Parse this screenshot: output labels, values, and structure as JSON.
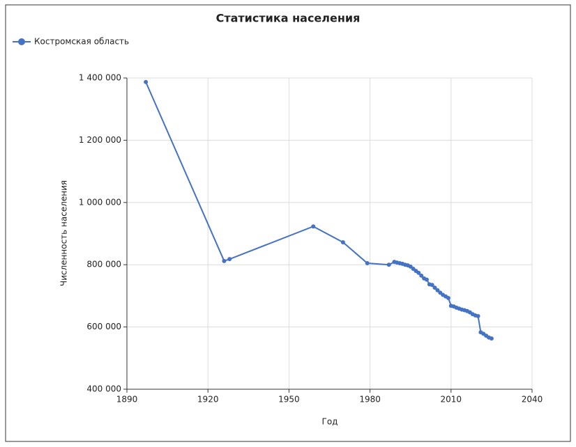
{
  "chart_data": {
    "type": "line",
    "title": "Статистика населения",
    "x_label": "Год",
    "y_label": "Численность населения",
    "grid": true,
    "legend_position": "top-left",
    "x": [
      1897,
      1926,
      1928,
      1959,
      1970,
      1979,
      1987,
      1989,
      1990,
      1991,
      1992,
      1993,
      1994,
      1995,
      1996,
      1997,
      1998,
      1999,
      2000,
      2001,
      2002,
      2003,
      2004,
      2005,
      2006,
      2007,
      2008,
      2009,
      2010,
      2011,
      2012,
      2013,
      2014,
      2015,
      2016,
      2017,
      2018,
      2019,
      2020,
      2021,
      2022,
      2023,
      2024,
      2025
    ],
    "series": [
      {
        "name": "Костромская область",
        "color": "#4472c4",
        "values": [
          1387000,
          812000,
          818000,
          923000,
          872000,
          805000,
          800000,
          809000,
          807000,
          805000,
          803000,
          800000,
          798000,
          794000,
          787000,
          780000,
          774000,
          765000,
          756000,
          752000,
          737000,
          735000,
          726000,
          718000,
          710000,
          703000,
          698000,
          693000,
          668000,
          666000,
          662000,
          659000,
          656000,
          654000,
          651000,
          647000,
          641000,
          637000,
          635000,
          583000,
          578000,
          572000,
          566000,
          563000
        ]
      }
    ],
    "xlim": [
      1890,
      2040
    ],
    "xticks": [
      1890,
      1920,
      1950,
      1980,
      2010,
      2040
    ],
    "ylim": [
      400000,
      1400000
    ],
    "yticks": [
      {
        "value": 400000,
        "label": "400 000"
      },
      {
        "value": 600000,
        "label": "600 000"
      },
      {
        "value": 800000,
        "label": "800 000"
      },
      {
        "value": 1000000,
        "label": "1 000 000"
      },
      {
        "value": 1200000,
        "label": "1 200 000"
      },
      {
        "value": 1400000,
        "label": "1 400 000"
      }
    ]
  }
}
